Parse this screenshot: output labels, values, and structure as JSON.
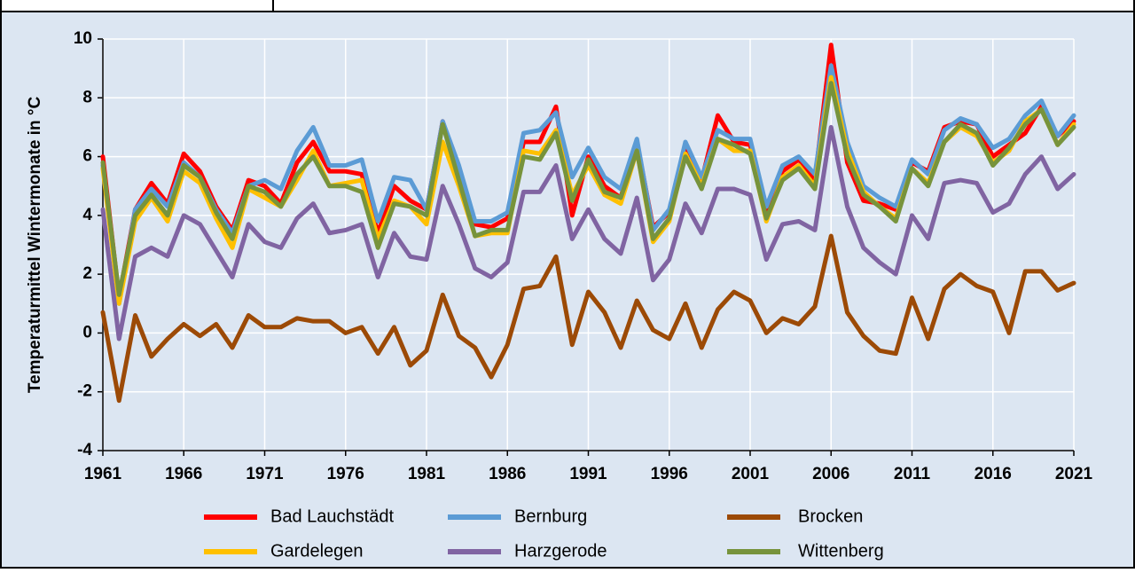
{
  "chart_data": {
    "type": "line",
    "y_label": "Temperaturmittel Wintermonate in °C",
    "x": [
      1961,
      1962,
      1963,
      1964,
      1965,
      1966,
      1967,
      1968,
      1969,
      1970,
      1971,
      1972,
      1973,
      1974,
      1975,
      1976,
      1977,
      1978,
      1979,
      1980,
      1981,
      1982,
      1983,
      1984,
      1985,
      1986,
      1987,
      1988,
      1989,
      1990,
      1991,
      1992,
      1993,
      1994,
      1995,
      1996,
      1997,
      1998,
      1999,
      2000,
      2001,
      2002,
      2003,
      2004,
      2005,
      2006,
      2007,
      2008,
      2009,
      2010,
      2011,
      2012,
      2013,
      2014,
      2015,
      2016,
      2017,
      2018,
      2019,
      2020,
      2021
    ],
    "xlim": [
      1961,
      2021
    ],
    "xticks": [
      1961,
      1966,
      1971,
      1976,
      1981,
      1986,
      1991,
      1996,
      2001,
      2006,
      2011,
      2016,
      2021
    ],
    "ylim": [
      -4,
      10
    ],
    "yticks": [
      -4,
      -2,
      0,
      2,
      4,
      6,
      8,
      10
    ],
    "grid": true,
    "series": [
      {
        "name": "Bad Lauchstädt",
        "color": "#ff0000",
        "values": [
          6.0,
          1.2,
          4.2,
          5.1,
          4.4,
          6.1,
          5.5,
          4.3,
          3.5,
          5.2,
          5.0,
          4.4,
          5.8,
          6.5,
          5.5,
          5.5,
          5.4,
          3.4,
          5.0,
          4.5,
          4.2,
          7.2,
          5.3,
          3.7,
          3.6,
          3.9,
          6.5,
          6.5,
          7.7,
          4.0,
          6.0,
          5.0,
          4.6,
          6.5,
          3.6,
          4.1,
          6.3,
          5.2,
          7.4,
          6.5,
          6.4,
          4.1,
          5.5,
          5.9,
          5.2,
          9.8,
          5.8,
          4.5,
          4.4,
          4.2,
          5.8,
          5.5,
          7.0,
          7.2,
          7.1,
          6.0,
          6.4,
          6.8,
          7.7,
          6.7,
          7.2
        ]
      },
      {
        "name": "Bernburg",
        "color": "#5b9bd5",
        "values": [
          5.7,
          1.0,
          4.2,
          4.9,
          4.3,
          5.8,
          5.3,
          4.2,
          3.4,
          5.0,
          5.2,
          4.9,
          6.2,
          7.0,
          5.7,
          5.7,
          5.9,
          3.8,
          5.3,
          5.2,
          4.2,
          7.2,
          5.7,
          3.8,
          3.8,
          4.1,
          6.8,
          6.9,
          7.5,
          5.3,
          6.3,
          5.3,
          4.9,
          6.6,
          3.5,
          4.2,
          6.5,
          5.3,
          6.9,
          6.6,
          6.6,
          4.3,
          5.7,
          6.0,
          5.4,
          9.1,
          6.5,
          5.0,
          4.6,
          4.3,
          5.9,
          5.4,
          6.9,
          7.3,
          7.1,
          6.3,
          6.6,
          7.4,
          7.9,
          6.7,
          7.4
        ]
      },
      {
        "name": "Brocken",
        "color": "#9c4a06",
        "values": [
          0.7,
          -2.3,
          0.6,
          -0.8,
          -0.2,
          0.3,
          -0.1,
          0.3,
          -0.5,
          0.6,
          0.2,
          0.2,
          0.5,
          0.4,
          0.4,
          0.0,
          0.2,
          -0.7,
          0.2,
          -1.1,
          -0.6,
          1.3,
          -0.1,
          -0.5,
          -1.5,
          -0.4,
          1.5,
          1.6,
          2.6,
          -0.4,
          1.4,
          0.7,
          -0.5,
          1.1,
          0.1,
          -0.2,
          1.0,
          -0.5,
          0.8,
          1.4,
          1.1,
          0.0,
          0.5,
          0.3,
          0.9,
          3.3,
          0.7,
          -0.1,
          -0.6,
          -0.7,
          1.2,
          -0.2,
          1.5,
          2.0,
          1.6,
          1.4,
          0.0,
          2.1,
          2.1,
          1.45,
          1.7
        ]
      },
      {
        "name": "Gardelegen",
        "color": "#ffc000",
        "values": [
          5.6,
          1.0,
          3.8,
          4.6,
          3.8,
          5.5,
          5.1,
          3.9,
          2.9,
          4.9,
          4.6,
          4.3,
          5.2,
          6.2,
          5.0,
          5.1,
          5.2,
          3.2,
          4.5,
          4.3,
          3.7,
          6.5,
          5.0,
          3.3,
          3.4,
          3.4,
          6.2,
          6.1,
          6.9,
          4.7,
          5.7,
          4.7,
          4.4,
          6.2,
          3.1,
          3.8,
          6.1,
          5.0,
          6.6,
          6.2,
          6.2,
          3.8,
          5.3,
          5.7,
          5.0,
          8.7,
          6.2,
          4.8,
          4.3,
          3.9,
          5.6,
          5.1,
          6.5,
          7.0,
          6.7,
          5.8,
          6.2,
          7.2,
          7.6,
          6.4,
          7.1
        ]
      },
      {
        "name": "Harzgerode",
        "color": "#8064a2",
        "values": [
          4.2,
          -0.2,
          2.6,
          2.9,
          2.6,
          4.0,
          3.7,
          2.8,
          1.9,
          3.7,
          3.1,
          2.9,
          3.9,
          4.4,
          3.4,
          3.5,
          3.7,
          1.9,
          3.4,
          2.6,
          2.5,
          5.0,
          3.7,
          2.2,
          1.9,
          2.4,
          4.8,
          4.8,
          5.7,
          3.2,
          4.2,
          3.2,
          2.7,
          4.6,
          1.8,
          2.5,
          4.4,
          3.4,
          4.9,
          4.9,
          4.7,
          2.5,
          3.7,
          3.8,
          3.5,
          7.0,
          4.3,
          2.9,
          2.4,
          2.0,
          4.0,
          3.2,
          5.1,
          5.2,
          5.1,
          4.1,
          4.4,
          5.4,
          6.0,
          4.9,
          5.4
        ]
      },
      {
        "name": "Wittenberg",
        "color": "#77933c",
        "values": [
          5.8,
          1.3,
          4.0,
          4.7,
          4.0,
          5.7,
          5.3,
          4.1,
          3.2,
          5.0,
          4.8,
          4.3,
          5.4,
          6.0,
          5.0,
          5.0,
          4.8,
          2.9,
          4.4,
          4.3,
          4.0,
          7.1,
          5.2,
          3.3,
          3.5,
          3.5,
          6.0,
          5.9,
          6.8,
          4.5,
          5.9,
          4.8,
          4.6,
          6.2,
          3.2,
          3.9,
          6.0,
          4.9,
          6.6,
          6.4,
          6.1,
          3.9,
          5.2,
          5.6,
          4.9,
          8.5,
          6.0,
          4.7,
          4.3,
          3.8,
          5.6,
          5.0,
          6.5,
          7.1,
          6.8,
          5.7,
          6.3,
          7.1,
          7.6,
          6.4,
          7.0
        ]
      }
    ]
  }
}
